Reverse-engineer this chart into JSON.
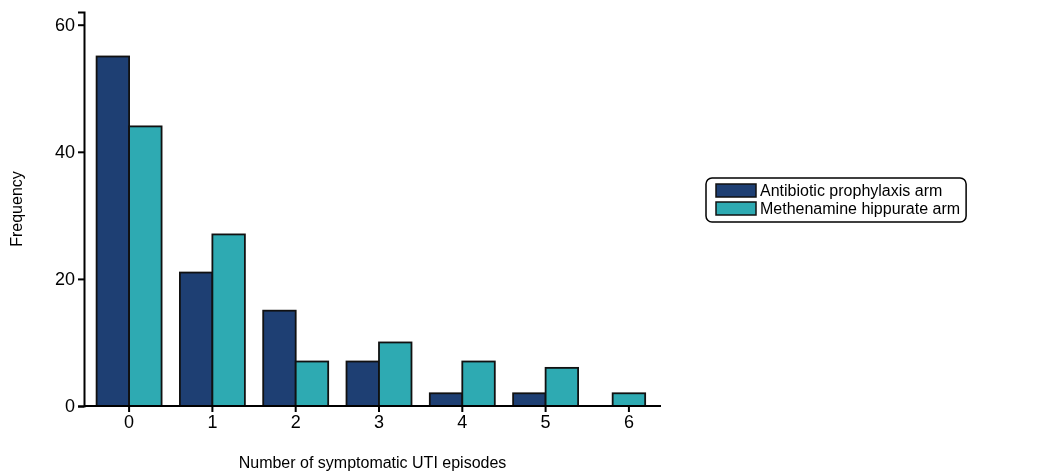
{
  "chart_data": {
    "type": "bar",
    "xlabel": "Number of symptomatic UTI episodes",
    "ylabel": "Frequency",
    "categories": [
      "0",
      "1",
      "2",
      "3",
      "4",
      "5",
      "6"
    ],
    "series": [
      {
        "name": "Antibiotic prophylaxis arm",
        "color": "#1e3f73",
        "values": [
          55,
          21,
          15,
          7,
          2,
          2,
          null
        ]
      },
      {
        "name": "Methenamine hippurate arm",
        "color": "#2eaab2",
        "values": [
          44,
          27,
          7,
          10,
          7,
          6,
          2
        ]
      }
    ],
    "ylim": [
      0,
      62
    ],
    "yticks": [
      0,
      20,
      40,
      60
    ],
    "grid": false,
    "legend": "right"
  }
}
